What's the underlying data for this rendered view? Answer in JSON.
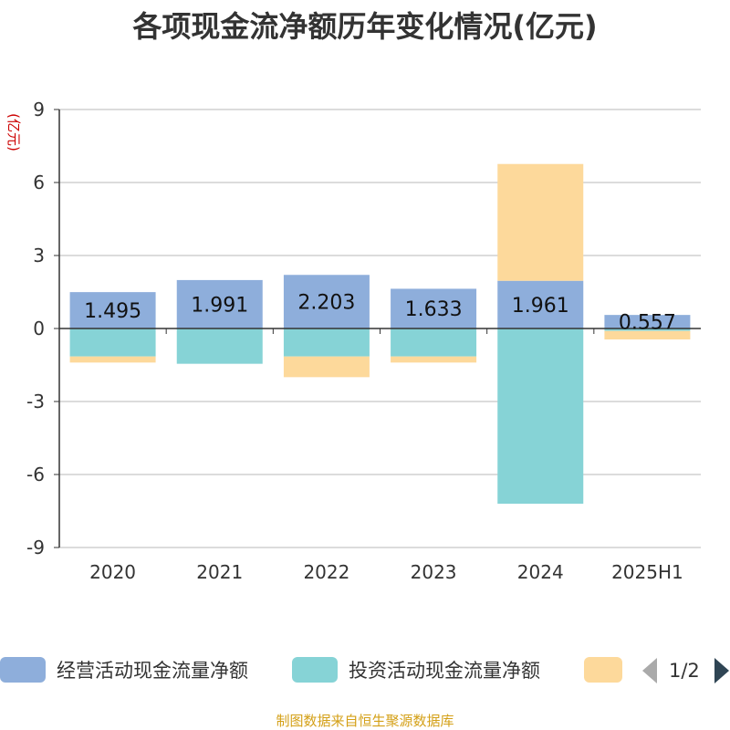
{
  "title": "各项现金流净额历年变化情况(亿元)",
  "source": "制图数据来自恒生聚源数据库",
  "chart_data": {
    "type": "bar",
    "stacked": true,
    "ylabel": "(亿元)",
    "ylim": [
      -9,
      9
    ],
    "yticks": [
      9,
      6,
      3,
      0,
      -3,
      -6,
      -9
    ],
    "grid": true,
    "legend_position": "bottom",
    "categories": [
      "2020",
      "2021",
      "2022",
      "2023",
      "2024",
      "2025H1"
    ],
    "series": [
      {
        "name": "经营活动现金流量净额",
        "color": "#8eaedb",
        "values": [
          1.495,
          1.991,
          2.203,
          1.633,
          1.961,
          0.557
        ],
        "labels": [
          "1.495",
          "1.991",
          "2.203",
          "1.633",
          "1.961",
          "0.557"
        ]
      },
      {
        "name": "投资活动现金流量净额",
        "color": "#86d3d6",
        "values": [
          -1.15,
          -1.45,
          -1.15,
          -1.15,
          -7.2,
          -0.1
        ]
      },
      {
        "name": "",
        "color": "#fdd99b",
        "values": [
          -0.25,
          0,
          -0.85,
          -0.25,
          4.8,
          -0.35
        ]
      }
    ],
    "legend": {
      "page": "1/2"
    }
  }
}
